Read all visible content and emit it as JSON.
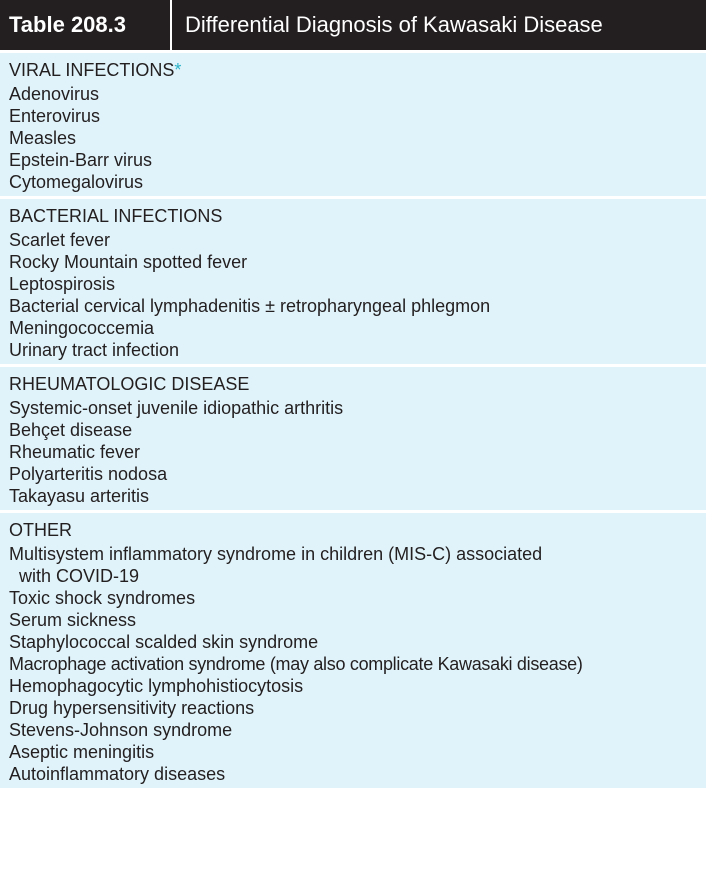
{
  "table": {
    "number": "Table 208.3",
    "title": "Differential Diagnosis of Kawasaki Disease"
  },
  "sections": [
    {
      "heading": "VIRAL INFECTIONS",
      "marker": "*",
      "items": [
        "Adenovirus",
        "Enterovirus",
        "Measles",
        "Epstein-Barr virus",
        "Cytomegalovirus"
      ]
    },
    {
      "heading": "BACTERIAL INFECTIONS",
      "marker": "",
      "items": [
        "Scarlet fever",
        "Rocky Mountain spotted fever",
        "Leptospirosis",
        "Bacterial cervical lymphadenitis ± retropharyngeal phlegmon",
        "Meningococcemia",
        "Urinary tract infection"
      ]
    },
    {
      "heading": "RHEUMATOLOGIC DISEASE",
      "marker": "",
      "items": [
        "Systemic-onset juvenile idiopathic arthritis",
        "Behçet disease",
        "Rheumatic fever",
        "Polyarteritis nodosa",
        "Takayasu arteritis"
      ]
    },
    {
      "heading": "OTHER",
      "marker": "",
      "items": [
        "Multisystem inflammatory syndrome in children (MIS-C) associated",
        "with COVID-19",
        "Toxic shock syndromes",
        "Serum sickness",
        "Staphylococcal scalded skin syndrome",
        "Macrophage activation syndrome (may also complicate Kawasaki disease)",
        "Hemophagocytic lymphohistiocytosis",
        "Drug hypersensitivity reactions",
        "Stevens-Johnson syndrome",
        "Aseptic meningitis",
        "Autoinflammatory diseases"
      ]
    }
  ],
  "colors": {
    "header_bg": "#231f20",
    "section_bg": "#e0f3fa",
    "asterisk": "#2bb3c7"
  }
}
